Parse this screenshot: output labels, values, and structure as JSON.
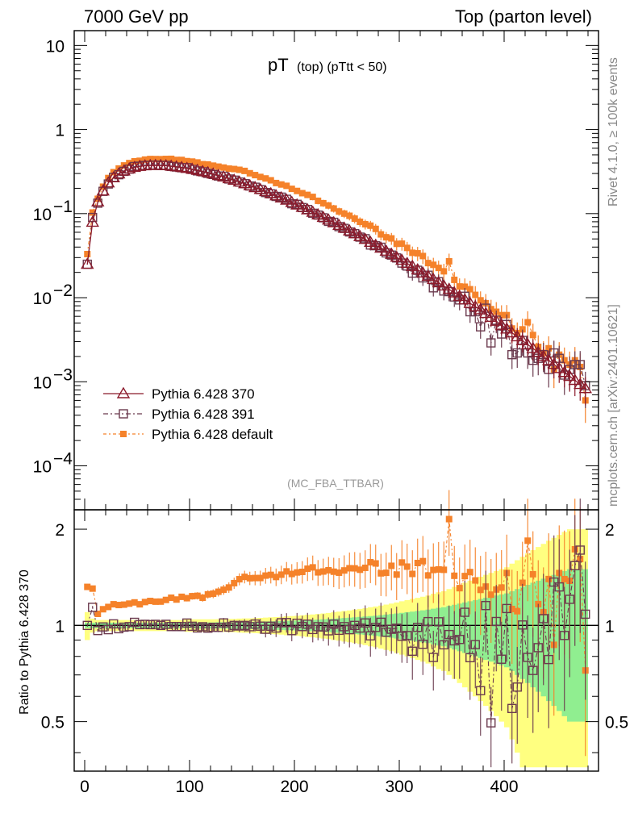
{
  "header": {
    "left": "7000 GeV pp",
    "right": "Top (parton level)"
  },
  "side_labels": {
    "rivet": "Rivet 4.1.0, ≥ 100k events",
    "mcplots": "mcplots.cern.ch [arXiv:2401.10621]"
  },
  "chart_data": {
    "type": "line",
    "title_main": "pT",
    "title_sub": "(top) (pTtt < 50)",
    "analysis_tag": "(MC_FBA_TTBAR)",
    "xlabel": "",
    "ylabel_main": "",
    "ylabel_ratio": "Ratio to Pythia 6.428 370",
    "xlim": [
      -10,
      490
    ],
    "ylim_main": [
      3e-05,
      15
    ],
    "ylim_ratio": [
      0.35,
      2.3
    ],
    "xscale": "linear",
    "yscale_main": "log",
    "yscale_ratio": "log",
    "x_ticks": [
      0,
      100,
      200,
      300,
      400
    ],
    "x_tick_labels": [
      "0",
      "100",
      "200",
      "300",
      "400"
    ],
    "main_y_ticks": [
      10,
      1,
      0.1,
      0.01,
      0.001,
      0.0001
    ],
    "main_y_tick_labels": [
      "10",
      "1",
      "10^-1",
      "10^-2",
      "10^-3",
      "10^-4"
    ],
    "ratio_y_ticks": [
      0.5,
      1,
      2
    ],
    "ratio_y_tick_labels": [
      "0.5",
      "1",
      "2"
    ],
    "colors": {
      "p370": "#8b1a2b",
      "p391": "#6b3a4e",
      "pdefault": "#f5822a",
      "band_inner": "#90ee90",
      "band_outer": "#ffff80"
    },
    "legend": {
      "location": "lower-left",
      "entries": [
        {
          "key": "p370",
          "label": "Pythia 6.428 370"
        },
        {
          "key": "p391",
          "label": "Pythia 6.428 391"
        },
        {
          "key": "pdefault",
          "label": "Pythia 6.428 default"
        }
      ]
    },
    "x": [
      2.5,
      7.5,
      12.5,
      17.5,
      22.5,
      27.5,
      32.5,
      37.5,
      42.5,
      47.5,
      52.5,
      57.5,
      62.5,
      67.5,
      72.5,
      77.5,
      82.5,
      87.5,
      92.5,
      97.5,
      102.5,
      107.5,
      112.5,
      117.5,
      122.5,
      127.5,
      132.5,
      137.5,
      142.5,
      147.5,
      152.5,
      157.5,
      162.5,
      167.5,
      172.5,
      177.5,
      182.5,
      187.5,
      192.5,
      197.5,
      202.5,
      207.5,
      212.5,
      217.5,
      222.5,
      227.5,
      232.5,
      237.5,
      242.5,
      247.5,
      252.5,
      257.5,
      262.5,
      267.5,
      272.5,
      277.5,
      282.5,
      287.5,
      292.5,
      297.5,
      302.5,
      307.5,
      312.5,
      317.5,
      322.5,
      327.5,
      332.5,
      337.5,
      342.5,
      347.5,
      352.5,
      357.5,
      362.5,
      367.5,
      372.5,
      377.5,
      382.5,
      387.5,
      392.5,
      397.5,
      402.5,
      407.5,
      412.5,
      417.5,
      422.5,
      427.5,
      432.5,
      437.5,
      442.5,
      447.5,
      452.5,
      457.5,
      462.5,
      467.5,
      472.5,
      477.5
    ],
    "series": [
      {
        "name": "Pythia 6.428 370",
        "key": "p370",
        "values": [
          0.025,
          0.079,
          0.138,
          0.186,
          0.232,
          0.267,
          0.297,
          0.322,
          0.341,
          0.355,
          0.365,
          0.371,
          0.374,
          0.375,
          0.374,
          0.372,
          0.367,
          0.361,
          0.354,
          0.346,
          0.337,
          0.328,
          0.317,
          0.307,
          0.296,
          0.284,
          0.273,
          0.261,
          0.25,
          0.238,
          0.227,
          0.215,
          0.204,
          0.194,
          0.183,
          0.173,
          0.163,
          0.154,
          0.145,
          0.136,
          0.127,
          0.119,
          0.111,
          0.104,
          0.0969,
          0.0902,
          0.084,
          0.0781,
          0.0725,
          0.0673,
          0.0624,
          0.0578,
          0.0535,
          0.0494,
          0.0456,
          0.0421,
          0.0389,
          0.0358,
          0.033,
          0.0303,
          0.0279,
          0.0256,
          0.0236,
          0.0215,
          0.0197,
          0.018,
          0.0165,
          0.0151,
          0.0138,
          0.0126,
          0.0114,
          0.0104,
          0.00946,
          0.00858,
          0.00781,
          0.0072,
          0.0065,
          0.00585,
          0.00525,
          0.00472,
          0.00425,
          0.00382,
          0.00343,
          0.00309,
          0.00277,
          0.00249,
          0.00223,
          0.002,
          0.00179,
          0.00161,
          0.00144,
          0.00129,
          0.00116,
          0.00104,
          0.00093,
          0.00083
        ]
      },
      {
        "name": "Pythia 6.428 391",
        "key": "p391",
        "values": [
          0.025,
          0.09,
          0.133,
          0.184,
          0.225,
          0.27,
          0.29,
          0.318,
          0.338,
          0.363,
          0.367,
          0.374,
          0.376,
          0.378,
          0.374,
          0.375,
          0.364,
          0.358,
          0.351,
          0.352,
          0.335,
          0.322,
          0.314,
          0.301,
          0.292,
          0.28,
          0.278,
          0.258,
          0.25,
          0.237,
          0.227,
          0.213,
          0.206,
          0.193,
          0.178,
          0.172,
          0.16,
          0.157,
          0.148,
          0.131,
          0.129,
          0.118,
          0.112,
          0.101,
          0.096,
          0.0892,
          0.0808,
          0.0788,
          0.07,
          0.0667,
          0.0605,
          0.0578,
          0.0525,
          0.0503,
          0.0423,
          0.0415,
          0.0398,
          0.0341,
          0.0321,
          0.0297,
          0.0258,
          0.0238,
          0.0196,
          0.0212,
          0.0172,
          0.0185,
          0.0131,
          0.0155,
          0.012,
          0.0118,
          0.0102,
          0.0094,
          0.0104,
          0.0068,
          0.0068,
          0.0045,
          0.0075,
          0.0029,
          0.0054,
          0.0037,
          0.0048,
          0.0021,
          0.0022,
          0.0031,
          0.0022,
          0.0018,
          0.0019,
          0.0021,
          0.0014,
          0.0022,
          0.0019,
          0.0012,
          0.0014,
          0.0016,
          0.0016,
          0.0009
        ]
      },
      {
        "name": "Pythia 6.428 default",
        "key": "pdefault",
        "values": [
          0.033,
          0.103,
          0.15,
          0.209,
          0.265,
          0.311,
          0.344,
          0.374,
          0.399,
          0.419,
          0.425,
          0.439,
          0.446,
          0.445,
          0.444,
          0.447,
          0.448,
          0.435,
          0.435,
          0.421,
          0.416,
          0.406,
          0.387,
          0.384,
          0.372,
          0.362,
          0.353,
          0.343,
          0.339,
          0.332,
          0.322,
          0.302,
          0.287,
          0.273,
          0.262,
          0.249,
          0.231,
          0.222,
          0.214,
          0.197,
          0.186,
          0.175,
          0.167,
          0.158,
          0.142,
          0.133,
          0.125,
          0.115,
          0.106,
          0.1,
          0.0942,
          0.0872,
          0.0799,
          0.0748,
          0.0719,
          0.0658,
          0.0566,
          0.0523,
          0.0507,
          0.0437,
          0.0439,
          0.0391,
          0.0342,
          0.0337,
          0.0313,
          0.0258,
          0.0246,
          0.0226,
          0.0206,
          0.0271,
          0.0163,
          0.0136,
          0.0135,
          0.0126,
          0.0108,
          0.0093,
          0.0086,
          0.0073,
          0.0068,
          0.0062,
          0.0062,
          0.0043,
          0.0038,
          0.0042,
          0.0051,
          0.0036,
          0.0026,
          0.0022,
          0.0025,
          0.0014,
          0.0021,
          0.0018,
          0.0016,
          0.0018,
          0.0015,
          0.0006
        ]
      }
    ],
    "band_inner_halfwidth": [
      0.02,
      0.02,
      0.02,
      0.02,
      0.02,
      0.02,
      0.02,
      0.02,
      0.02,
      0.02,
      0.02,
      0.02,
      0.02,
      0.02,
      0.02,
      0.02,
      0.02,
      0.02,
      0.02,
      0.02,
      0.02,
      0.022,
      0.022,
      0.022,
      0.022,
      0.023,
      0.023,
      0.024,
      0.024,
      0.025,
      0.026,
      0.026,
      0.027,
      0.028,
      0.029,
      0.03,
      0.031,
      0.032,
      0.034,
      0.035,
      0.036,
      0.038,
      0.04,
      0.041,
      0.043,
      0.045,
      0.047,
      0.05,
      0.052,
      0.055,
      0.057,
      0.06,
      0.063,
      0.066,
      0.07,
      0.073,
      0.077,
      0.081,
      0.085,
      0.09,
      0.095,
      0.1,
      0.105,
      0.11,
      0.115,
      0.12,
      0.128,
      0.135,
      0.14,
      0.15,
      0.16,
      0.17,
      0.18,
      0.19,
      0.2,
      0.21,
      0.22,
      0.23,
      0.24,
      0.25,
      0.26,
      0.28,
      0.3,
      0.32,
      0.34,
      0.36,
      0.38,
      0.4,
      0.42,
      0.44,
      0.46,
      0.48,
      0.5,
      0.5,
      0.5,
      0.5
    ],
    "band_outer_halfwidth": [
      0.1,
      0.05,
      0.04,
      0.04,
      0.04,
      0.04,
      0.04,
      0.04,
      0.04,
      0.04,
      0.04,
      0.04,
      0.04,
      0.04,
      0.04,
      0.04,
      0.04,
      0.04,
      0.04,
      0.045,
      0.045,
      0.045,
      0.045,
      0.045,
      0.045,
      0.046,
      0.046,
      0.048,
      0.048,
      0.05,
      0.052,
      0.052,
      0.054,
      0.056,
      0.058,
      0.06,
      0.062,
      0.064,
      0.068,
      0.07,
      0.072,
      0.076,
      0.08,
      0.082,
      0.086,
      0.09,
      0.094,
      0.1,
      0.104,
      0.11,
      0.114,
      0.12,
      0.126,
      0.132,
      0.14,
      0.146,
      0.154,
      0.162,
      0.17,
      0.18,
      0.19,
      0.2,
      0.21,
      0.22,
      0.23,
      0.24,
      0.256,
      0.27,
      0.28,
      0.3,
      0.32,
      0.34,
      0.36,
      0.38,
      0.4,
      0.42,
      0.44,
      0.46,
      0.48,
      0.5,
      0.52,
      0.56,
      0.6,
      0.64,
      0.68,
      0.72,
      0.76,
      0.8,
      0.84,
      0.88,
      0.92,
      0.96,
      1.0,
      1.0,
      1.0,
      1.0
    ]
  }
}
